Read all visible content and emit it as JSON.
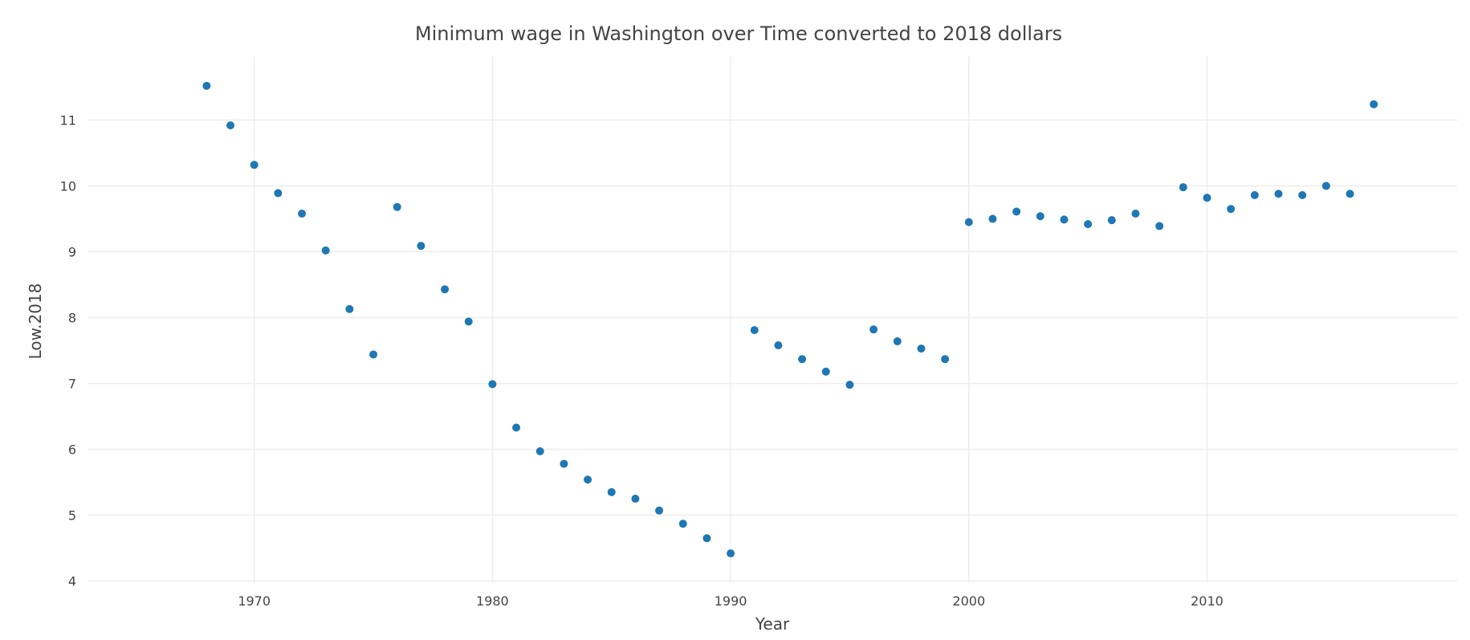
{
  "chart_data": {
    "type": "scatter",
    "title": "Minimum wage in Washington over Time converted to 2018 dollars",
    "xlabel": "Year",
    "ylabel": "Low.2018",
    "xlim": [
      1963,
      2020.5
    ],
    "ylim": [
      3.97,
      11.97
    ],
    "x_ticks": [
      1970,
      1980,
      1990,
      2000,
      2010
    ],
    "y_ticks": [
      4,
      5,
      6,
      7,
      8,
      9,
      10,
      11
    ],
    "grid": true,
    "marker_color": "#1f77b4",
    "series": [
      {
        "x": [
          1968,
          1969,
          1970,
          1971,
          1972,
          1973,
          1974,
          1975,
          1976,
          1977,
          1978,
          1979,
          1980,
          1981,
          1982,
          1983,
          1984,
          1985,
          1986,
          1987,
          1988,
          1989,
          1990,
          1991,
          1992,
          1993,
          1994,
          1995,
          1996,
          1997,
          1998,
          1999,
          2000,
          2001,
          2002,
          2003,
          2004,
          2005,
          2006,
          2007,
          2008,
          2009,
          2010,
          2011,
          2012,
          2013,
          2014,
          2015,
          2016,
          2017
        ],
        "y": [
          11.52,
          10.92,
          10.32,
          9.89,
          9.58,
          9.02,
          8.13,
          7.44,
          9.68,
          9.09,
          8.43,
          7.94,
          6.99,
          6.33,
          5.97,
          5.78,
          5.54,
          5.35,
          5.25,
          5.07,
          4.87,
          4.65,
          4.42,
          7.81,
          7.58,
          7.37,
          7.18,
          6.98,
          7.82,
          7.64,
          7.53,
          7.37,
          9.45,
          9.5,
          9.61,
          9.54,
          9.49,
          9.42,
          9.48,
          9.58,
          9.39,
          9.98,
          9.82,
          9.65,
          9.86,
          9.88,
          9.86,
          10.0,
          9.88,
          11.24
        ]
      }
    ]
  }
}
